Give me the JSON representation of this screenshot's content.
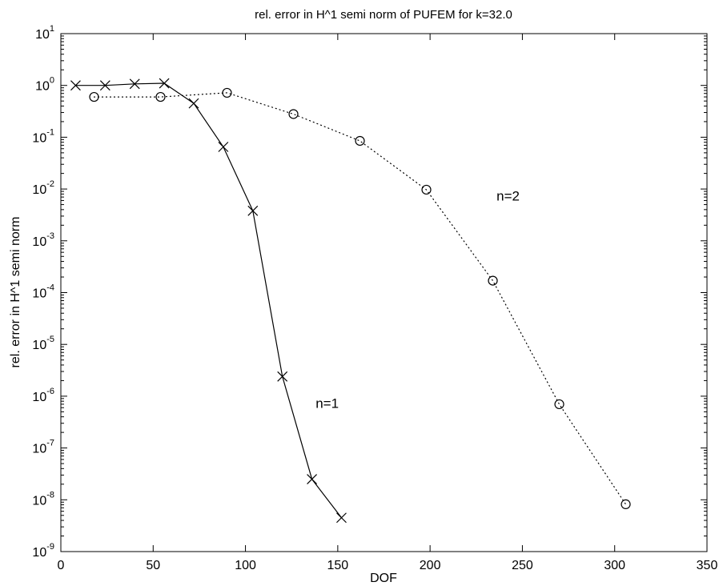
{
  "chart_data": {
    "type": "line",
    "title": "rel. error in H^1 semi norm of PUFEM for k=32.0",
    "xlabel": "DOF",
    "ylabel": "rel. error in H^1 semi norm",
    "xlim": [
      0,
      350
    ],
    "ylim_log10": [
      -9,
      1
    ],
    "yscale": "log",
    "grid": false,
    "x_ticks": [
      0,
      50,
      100,
      150,
      200,
      250,
      300,
      350
    ],
    "y_ticks_exponents": [
      1,
      0,
      -1,
      -2,
      -3,
      -4,
      -5,
      -6,
      -7,
      -8,
      -9
    ],
    "y_tick_base": "10",
    "series": [
      {
        "name": "n=1",
        "marker": "x",
        "line": "solid",
        "x": [
          8,
          24,
          40,
          56,
          72,
          88,
          104,
          120,
          136,
          152
        ],
        "y": [
          1.0,
          1.0,
          1.07,
          1.1,
          0.45,
          0.065,
          0.0038,
          2.4e-06,
          2.5e-08,
          4.5e-09
        ]
      },
      {
        "name": "n=2",
        "marker": "o",
        "line": "dotted",
        "x": [
          18,
          54,
          90,
          126,
          162,
          198,
          234,
          270,
          306
        ],
        "y": [
          0.6,
          0.6,
          0.72,
          0.28,
          0.085,
          0.0097,
          0.00017,
          7e-07,
          8.2e-09
        ]
      }
    ],
    "annotations": [
      {
        "text": "n=1",
        "x": 138,
        "y": 6e-07
      },
      {
        "text": "n=2",
        "x": 236,
        "y": 0.006
      }
    ]
  }
}
